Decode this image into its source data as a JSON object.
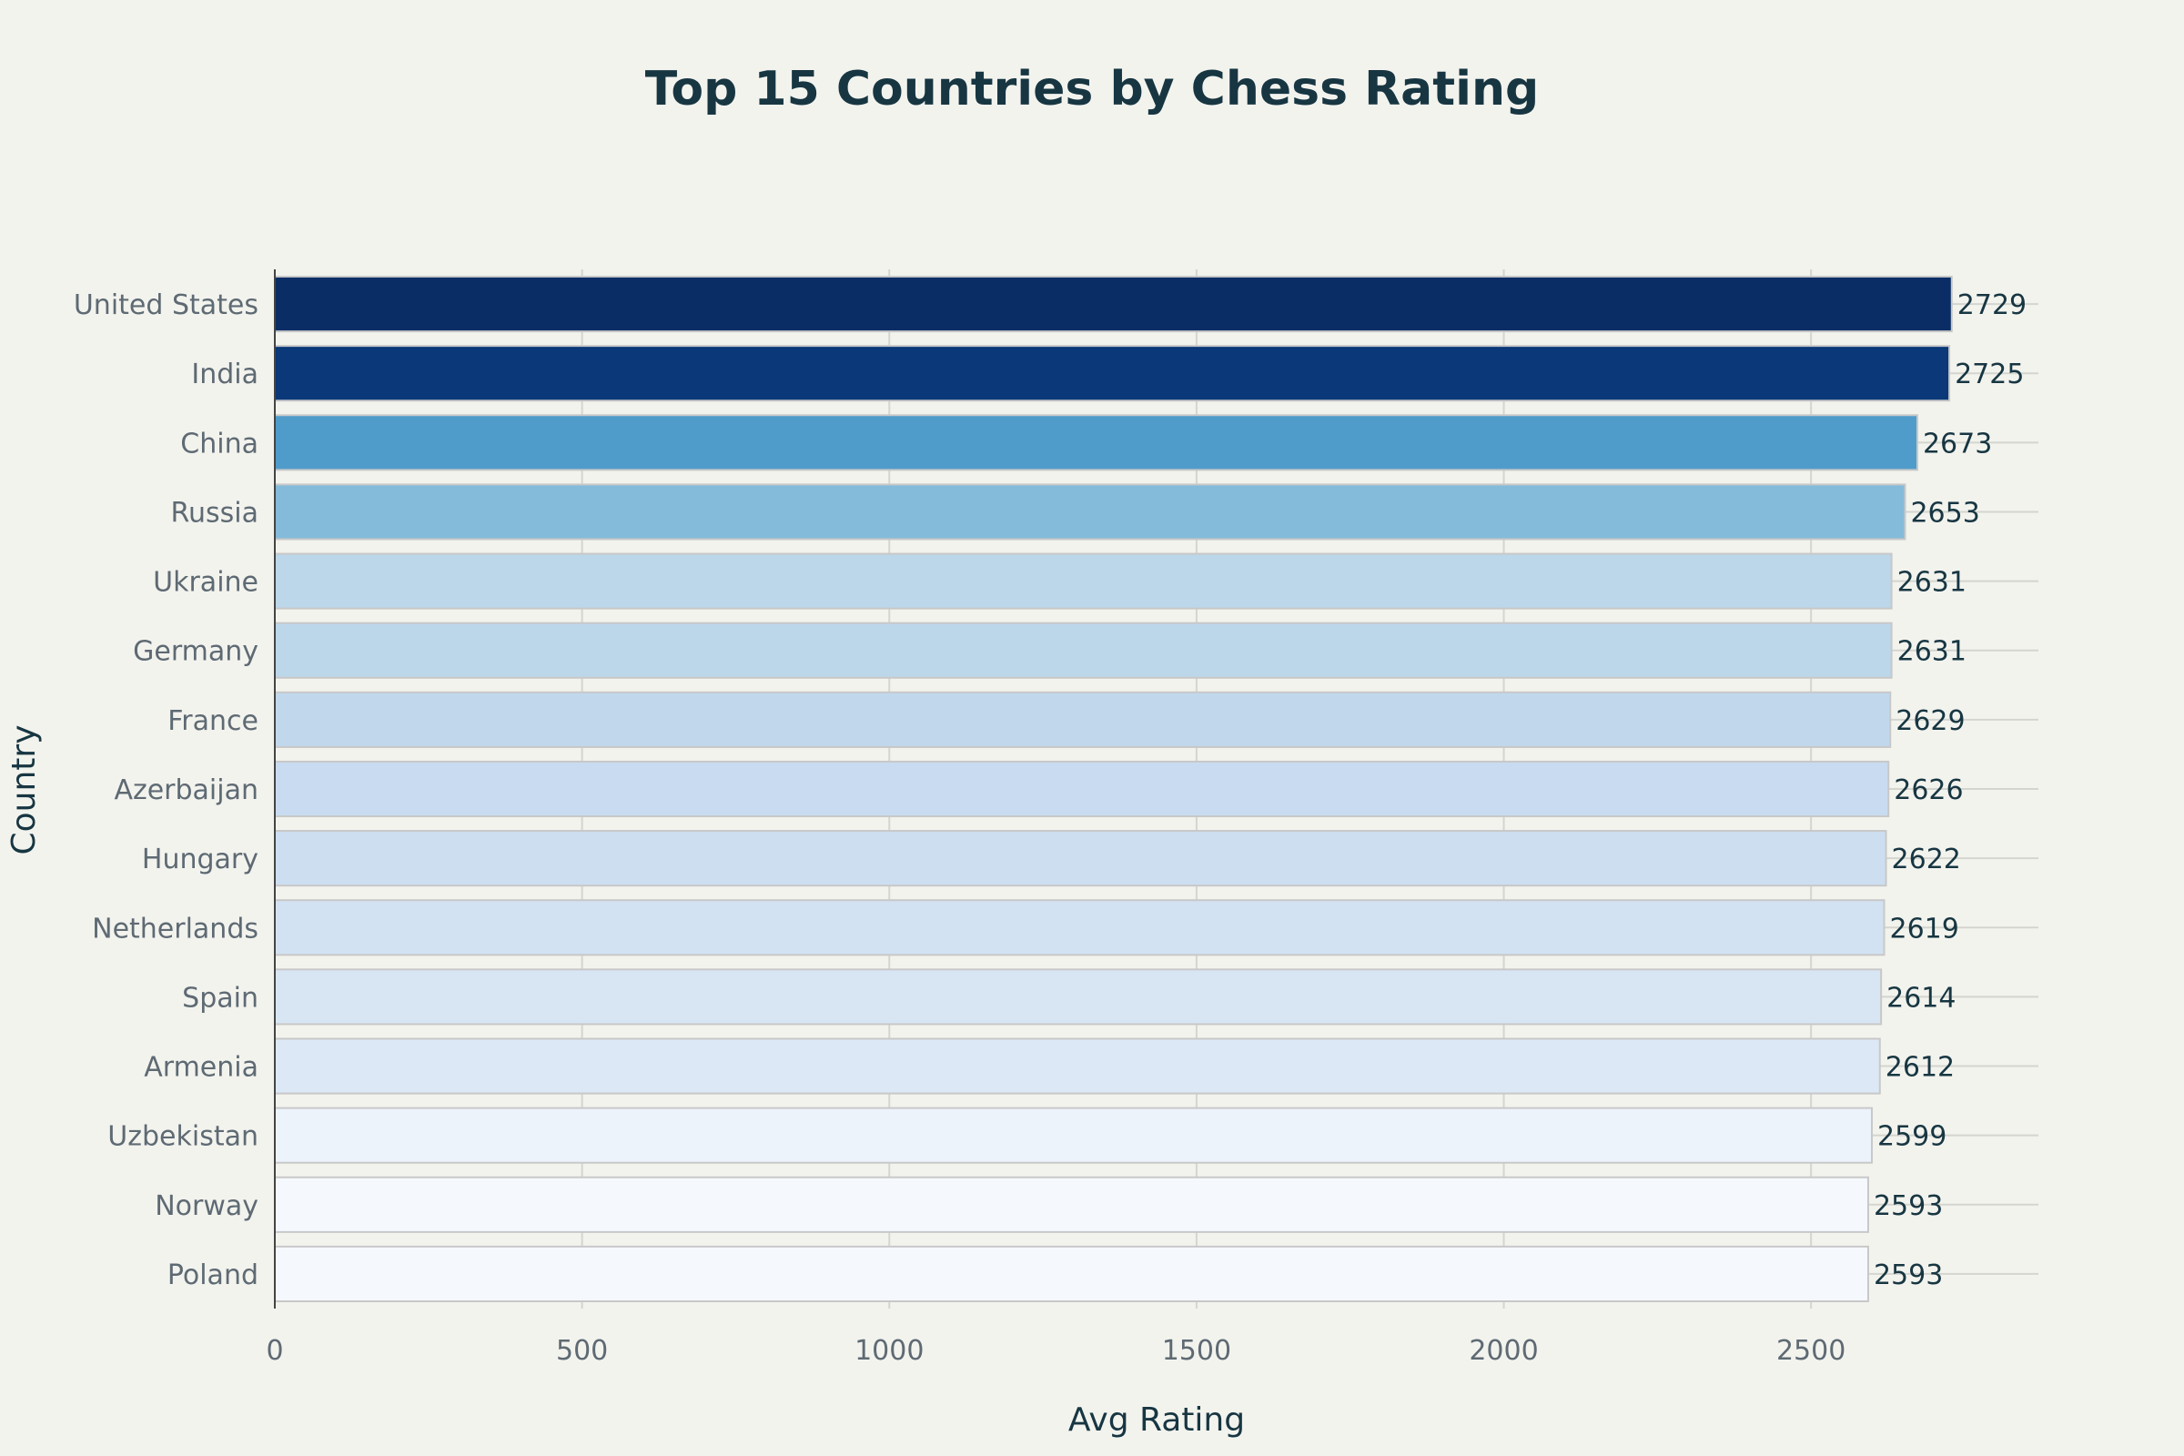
{
  "chart_data": {
    "type": "bar",
    "orientation": "horizontal",
    "title": "Top 15 Countries by Chess Rating",
    "xlabel": "Avg Rating",
    "ylabel": "Country",
    "xlim": [
      0,
      2870
    ],
    "xticks": [
      0,
      500,
      1000,
      1500,
      2000,
      2500
    ],
    "grid": true,
    "categories": [
      "United States",
      "India",
      "China",
      "Russia",
      "Ukraine",
      "Germany",
      "France",
      "Azerbaijan",
      "Hungary",
      "Netherlands",
      "Spain",
      "Armenia",
      "Uzbekistan",
      "Norway",
      "Poland"
    ],
    "values": [
      2729,
      2725,
      2673,
      2653,
      2631,
      2631,
      2629,
      2626,
      2622,
      2619,
      2614,
      2612,
      2599,
      2593,
      2593
    ],
    "colors": [
      "#0a2d66",
      "#0a3878",
      "#4f9ccb",
      "#84bbda",
      "#bcd7ea",
      "#bcd7ea",
      "#c1d8ec",
      "#c8dbf0",
      "#cddef1",
      "#d2e2f2",
      "#d8e6f4",
      "#dce8f5",
      "#ecf3fb",
      "#f5f9fe",
      "#f5f9fe"
    ]
  }
}
